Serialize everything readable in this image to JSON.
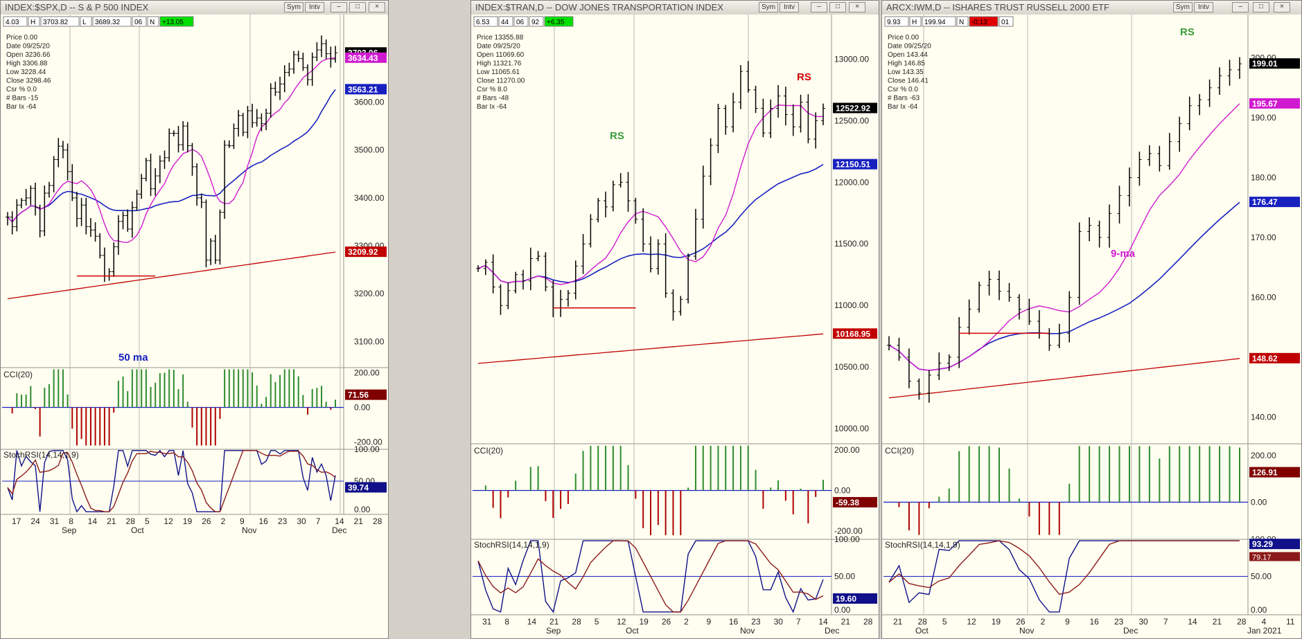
{
  "colors": {
    "up": "#2e8b2e",
    "down": "#b00000",
    "bars": "#000000",
    "ma9": "#d01ad0",
    "ma50": "#1820c0",
    "ma200": "#c00000",
    "trend": "#7f7f00",
    "bg": "#fffef0"
  },
  "window_controls": {
    "sym": "Sym",
    "intv": "Intv",
    "minimize": "–",
    "maximize": "□",
    "close": "×"
  },
  "panels": [
    {
      "id": "spx",
      "title": "INDEX:$SPX,D -- S & P 500 INDEX",
      "toolbar": [
        "4.03",
        "H",
        "3703.82",
        "L",
        "3689.32",
        "06",
        "N",
        "+13.05"
      ],
      "info": [
        "Price  0.00",
        "Date  09/25/20",
        "Open  3236.66",
        "High  3306.88",
        "Low  3228.44",
        "Close  3298.46",
        "Csr %  0.0",
        "# Bars  -15",
        "Bar Ix  -64"
      ],
      "y_labels": [
        "3600.00",
        "3500.00",
        "3400.00",
        "3300.00",
        "3200.00",
        "3100.00"
      ],
      "tags": [
        {
          "text": "3703.06",
          "color": "#000000"
        },
        {
          "text": "3634.43",
          "color": "#d01ad0"
        },
        {
          "text": "3563.21",
          "color": "#1820c0"
        },
        {
          "text": "3209.92",
          "color": "#c00000"
        }
      ],
      "annotations": [
        "50 ma"
      ],
      "cci": {
        "label": "CCI(20)",
        "levels": [
          "200.00",
          "0.00",
          "-200.00"
        ],
        "value": "71.56"
      },
      "stoch": {
        "label": "StochRSI(14,14,1,9)",
        "levels": [
          "100.00",
          "50.00",
          "0.00"
        ],
        "value": "39.74"
      },
      "x_days": [
        "17",
        "24",
        "31",
        "8",
        "14",
        "21",
        "28",
        "5",
        "12",
        "19",
        "26",
        "2",
        "9",
        "16",
        "23",
        "30",
        "7",
        "14",
        "21",
        "28"
      ],
      "x_months": [
        "Sep",
        "Oct",
        "Nov",
        "Dec"
      ]
    },
    {
      "id": "tran",
      "title": "INDEX:$TRAN,D -- DOW JONES TRANSPORTATION INDEX",
      "toolbar": [
        "6.53",
        "44",
        "06",
        "92",
        "+6.35"
      ],
      "info": [
        "Price  13355.88",
        "Date  09/25/20",
        "Open  11069.60",
        "High  11321.76",
        "Low  11065.61",
        "Close  11270.00",
        "Csr %  8.0",
        "# Bars  -48",
        "Bar Ix  -64"
      ],
      "y_labels": [
        "13000.00",
        "12500.00",
        "12000.00",
        "11500.00",
        "11000.00",
        "10500.00",
        "10000.00"
      ],
      "tags": [
        {
          "text": "12522.92",
          "color": "#000000"
        },
        {
          "text": "12150.51",
          "color": "#1820c0"
        },
        {
          "text": "10168.95",
          "color": "#c00000"
        }
      ],
      "annotations": [
        "RS",
        "RS"
      ],
      "cci": {
        "label": "CCI(20)",
        "levels": [
          "200.00",
          "0.00",
          "-200.00"
        ],
        "value": "-59.38"
      },
      "stoch": {
        "label": "StochRSI(14,14,1,9)",
        "levels": [
          "100.00",
          "50.00",
          "0.00"
        ],
        "value": "19.60"
      },
      "x_days": [
        "31",
        "8",
        "14",
        "21",
        "28",
        "5",
        "12",
        "19",
        "26",
        "2",
        "9",
        "16",
        "23",
        "30",
        "7",
        "14",
        "21",
        "28"
      ],
      "x_months": [
        "Sep",
        "Oct",
        "Nov",
        "Dec"
      ]
    },
    {
      "id": "iwm",
      "title": "ARCX:IWM,D -- ISHARES TRUST RUSSELL 2000 ETF",
      "toolbar": [
        "9.93",
        "H",
        "199.94",
        "N",
        "-0.13",
        "01"
      ],
      "info": [
        "Price  0.00",
        "Date  09/25/20",
        "Open  143.44",
        "High  146.85",
        "Low  143.35",
        "Close  146.41",
        "Csr %  0.0",
        "# Bars  -63",
        "Bar Ix  -64"
      ],
      "y_labels": [
        "200.00",
        "190.00",
        "180.00",
        "170.00",
        "160.00",
        "150.00",
        "140.00"
      ],
      "tags": [
        {
          "text": "199.01",
          "color": "#000000"
        },
        {
          "text": "195.67",
          "color": "#d01ad0"
        },
        {
          "text": "176.47",
          "color": "#1820c0"
        },
        {
          "text": "148.62",
          "color": "#c00000"
        }
      ],
      "annotations": [
        "RS",
        "9-ma"
      ],
      "cci": {
        "label": "CCI(20)",
        "levels": [
          "200.00",
          "0.00"
        ],
        "value": "126.91"
      },
      "stoch": {
        "label": "StochRSI(14,14,1,9)",
        "levels": [
          "100.00",
          "50.00",
          "0.00"
        ],
        "value": "93.29",
        "value2": "79.17"
      },
      "x_days": [
        "21",
        "28",
        "5",
        "12",
        "19",
        "26",
        "2",
        "9",
        "16",
        "23",
        "30",
        "7",
        "14",
        "21",
        "28",
        "4",
        "11"
      ],
      "x_months": [
        "Oct",
        "Nov",
        "Dec",
        "Jan 2021"
      ]
    }
  ],
  "chart_data": [
    {
      "type": "candlestick",
      "title": "INDEX:$SPX,D -- S & P 500 INDEX",
      "ylim": [
        3050,
        3780
      ],
      "close": [
        3360,
        3340,
        3385,
        3395,
        3400,
        3420,
        3380,
        3331,
        3410,
        3426,
        3480,
        3508,
        3500,
        3455,
        3400,
        3357,
        3385,
        3340,
        3333,
        3320,
        3280,
        3237,
        3246,
        3298,
        3351,
        3363,
        3335,
        3380,
        3408,
        3441,
        3478,
        3419,
        3446,
        3477,
        3484,
        3535,
        3535,
        3511,
        3550,
        3509,
        3465,
        3400,
        3391,
        3270,
        3310,
        3270,
        3370,
        3510,
        3509,
        3545,
        3572,
        3537,
        3582,
        3557,
        3567,
        3555,
        3577,
        3629,
        3621,
        3638,
        3662,
        3669,
        3699,
        3691,
        3672,
        3647,
        3694,
        3709,
        3722,
        3701,
        3690,
        3703
      ],
      "cci": {
        "range": [
          -230,
          230
        ],
        "last": 71.56
      },
      "stoch": {
        "range": [
          0,
          100
        ],
        "last": 39.74
      }
    },
    {
      "type": "candlestick",
      "title": "INDEX:$TRAN,D -- DOW JONES TRANSPORTATION INDEX",
      "ylim": [
        9900,
        13350
      ],
      "close": [
        11300,
        11350,
        11150,
        11000,
        11120,
        11250,
        11200,
        11380,
        11400,
        11150,
        10980,
        11050,
        11100,
        11320,
        11500,
        11700,
        11850,
        11800,
        11980,
        12000,
        11850,
        11700,
        11500,
        11300,
        11500,
        11100,
        10950,
        11050,
        11400,
        11700,
        12050,
        12300,
        12600,
        12450,
        12650,
        12900,
        12750,
        12600,
        12400,
        12600,
        12700,
        12550,
        12450,
        12650,
        12350,
        12500,
        12600
      ],
      "cci": {
        "range": [
          -230,
          230
        ],
        "last": -59.38
      },
      "stoch": {
        "range": [
          0,
          100
        ],
        "last": 19.6
      }
    },
    {
      "type": "candlestick",
      "title": "ARCX:IWM,D -- ISHARES TRUST RUSSELL 2000 ETF",
      "ylim": [
        136,
        207
      ],
      "close": [
        152,
        150,
        146,
        144,
        147,
        149,
        150,
        155,
        158,
        162,
        163,
        161,
        160,
        158,
        156,
        154,
        152,
        154,
        160,
        171,
        172,
        170,
        174,
        177,
        180,
        183,
        184,
        182,
        186,
        189,
        192,
        193,
        195,
        197,
        198,
        199
      ],
      "cci": {
        "range": [
          -150,
          250
        ],
        "last": 126.91
      },
      "stoch": {
        "range": [
          0,
          100
        ],
        "last": 93.29
      }
    }
  ]
}
